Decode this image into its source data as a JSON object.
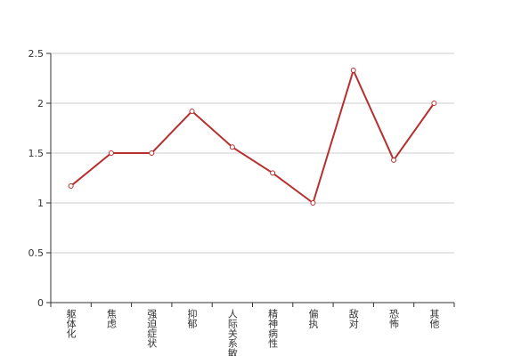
{
  "chart_data": {
    "type": "line",
    "categories": [
      "躯体化",
      "焦虑",
      "强迫症状",
      "抑郁",
      "人际关系敏感",
      "精神病性",
      "偏执",
      "敌对",
      "恐怖",
      "其他"
    ],
    "values": [
      1.17,
      1.5,
      1.5,
      1.92,
      1.56,
      1.3,
      1.0,
      2.33,
      1.43,
      2.0
    ],
    "color": "#b5302f",
    "ylim": [
      0,
      2.5
    ],
    "yticks": [
      0,
      0.5,
      1,
      1.5,
      2,
      2.5
    ],
    "grid": true
  }
}
